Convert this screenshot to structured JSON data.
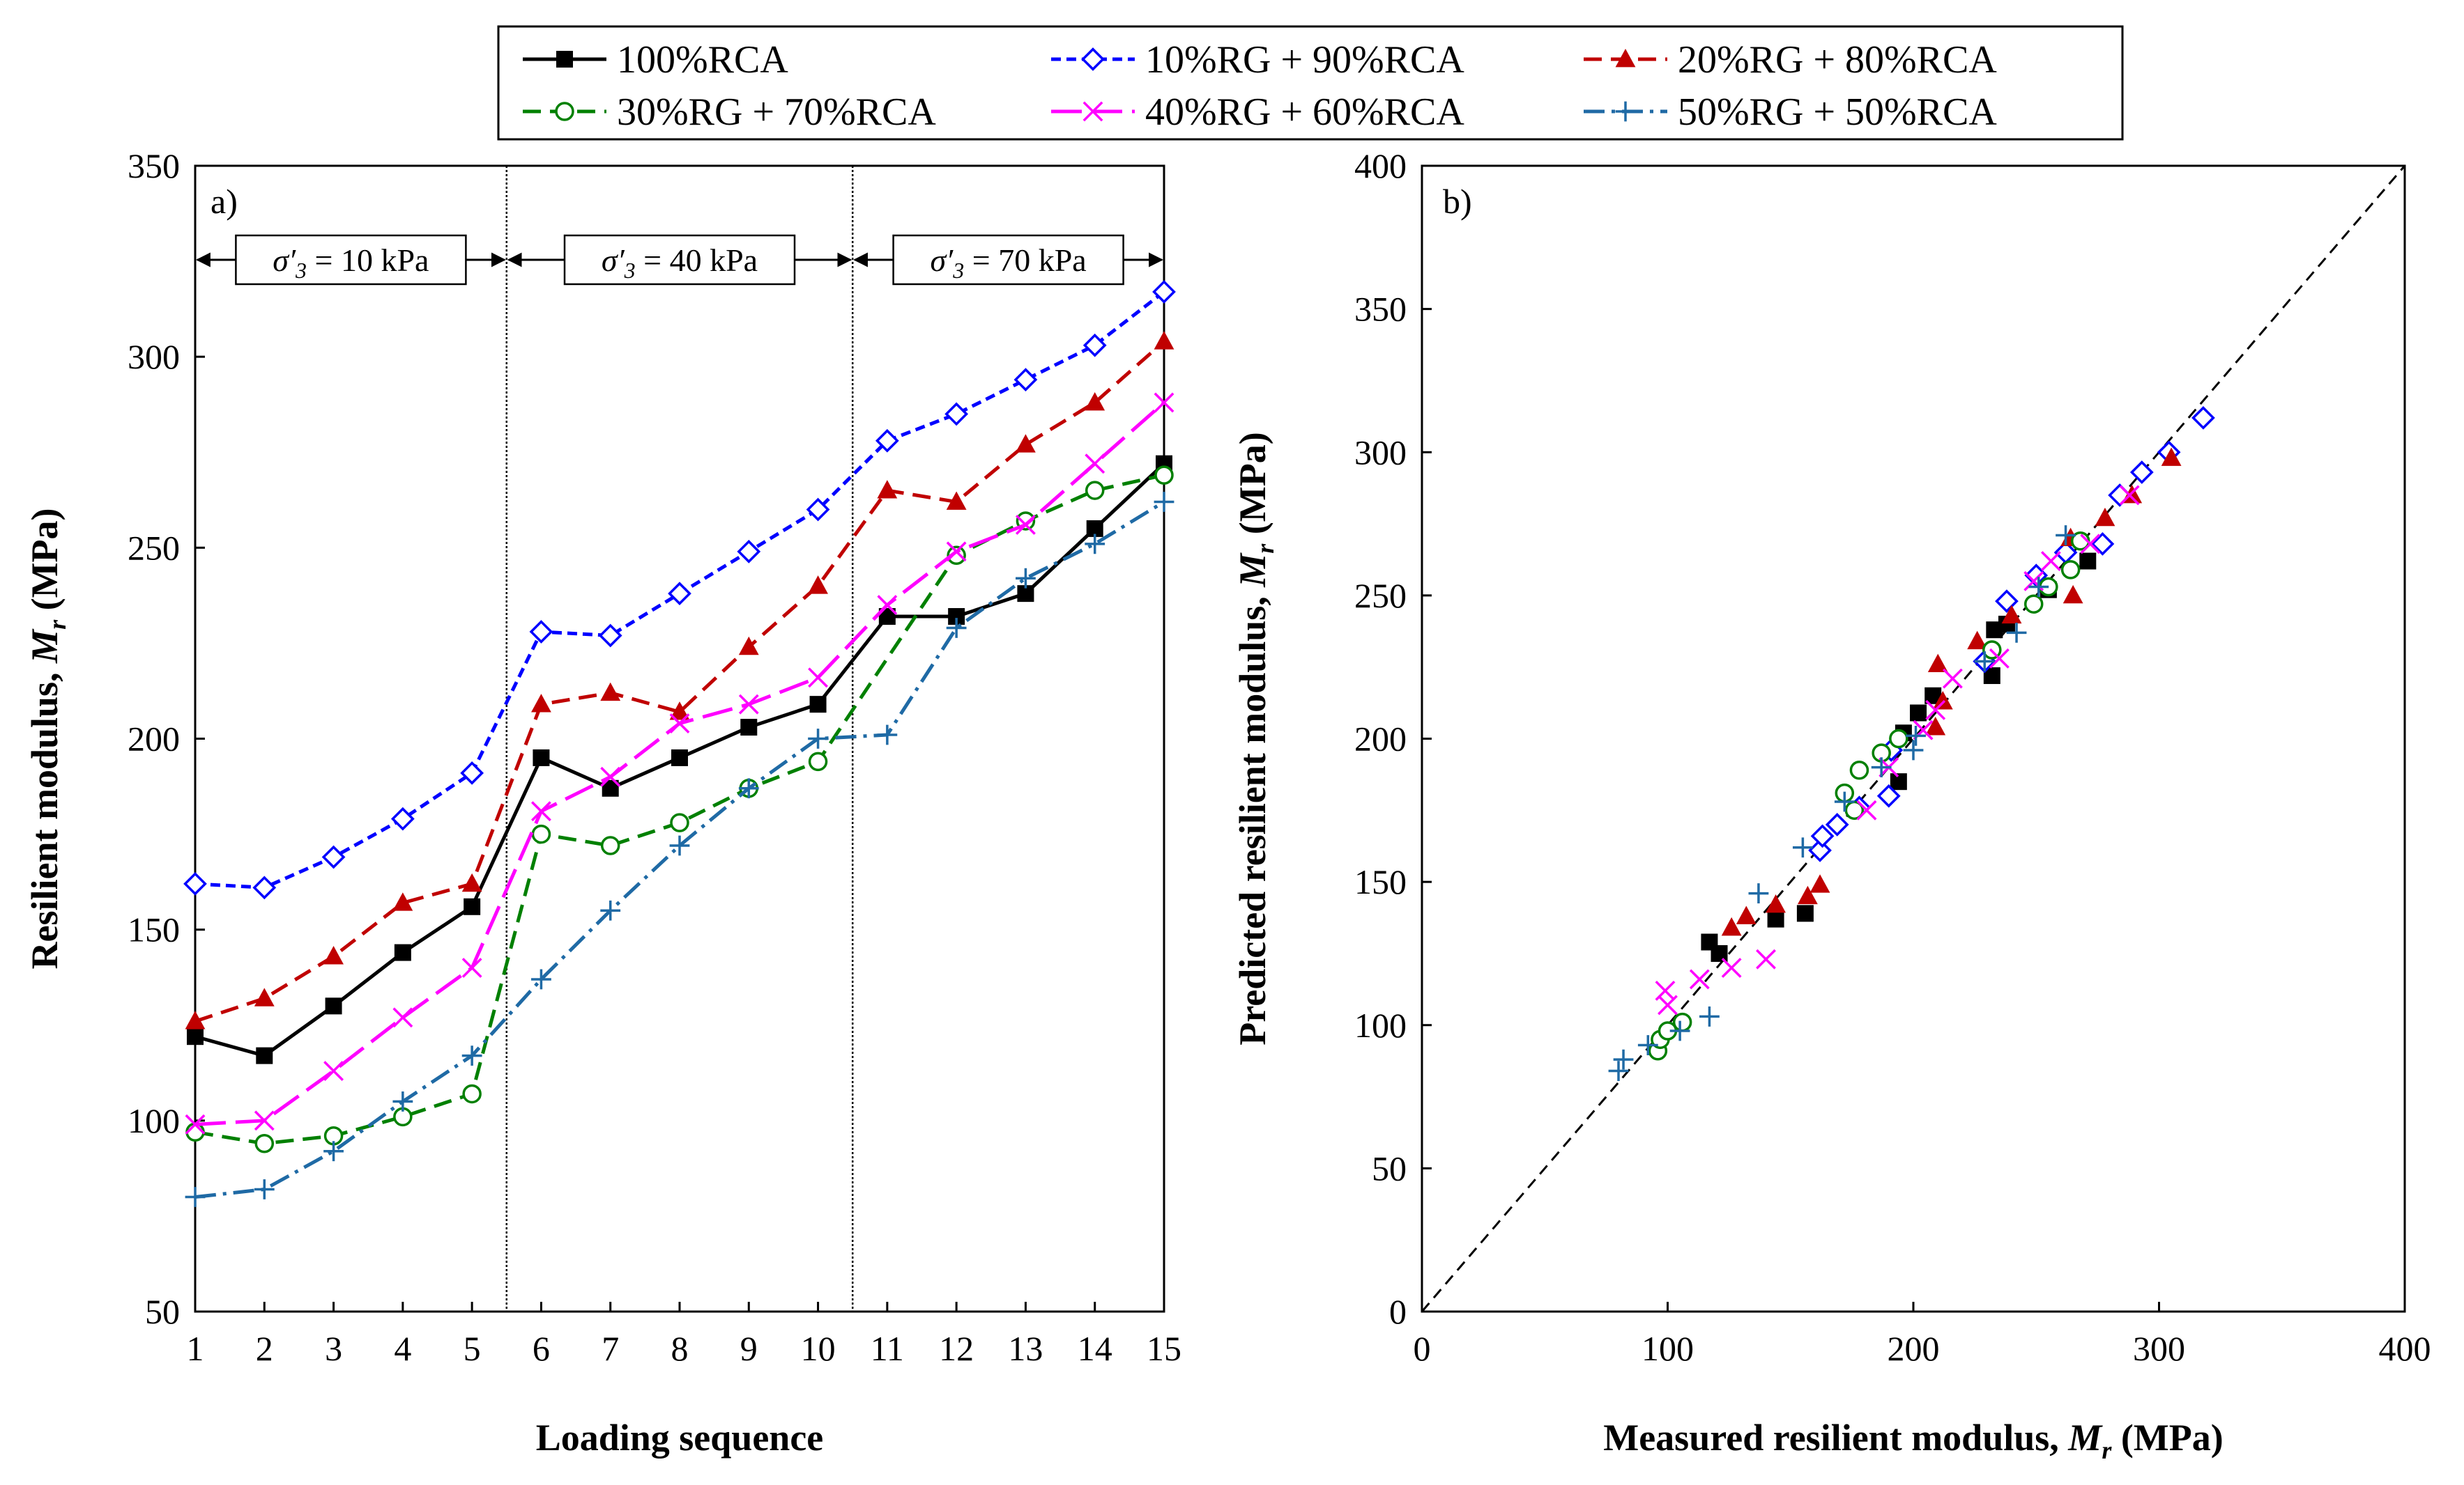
{
  "chart_data": [
    {
      "panel": "a)",
      "type": "line",
      "xlabel": "Loading sequence",
      "ylabel": "Resilient  modulus,",
      "ylabel_symbol": "M",
      "ylabel_sub": "r",
      "ylabel_unit": " (MPa)",
      "xlim": [
        1,
        15
      ],
      "ylim": [
        50,
        350
      ],
      "x": [
        1,
        2,
        3,
        4,
        5,
        6,
        7,
        8,
        9,
        10,
        11,
        12,
        13,
        14,
        15
      ],
      "xticks": [
        "1",
        "2",
        "3",
        "4",
        "5",
        "6",
        "7",
        "8",
        "9",
        "10",
        "11",
        "12",
        "13",
        "14",
        "15"
      ],
      "yticks": [
        "50",
        "100",
        "150",
        "200",
        "250",
        "300",
        "350"
      ],
      "stress_groups": [
        {
          "label": "σ′3 = 10 kPa",
          "from": 0.5,
          "to": 5.5
        },
        {
          "label": "σ′3 = 40 kPa",
          "from": 5.5,
          "to": 10.5
        },
        {
          "label": "σ′3 = 70 kPa",
          "from": 10.5,
          "to": 15
        }
      ],
      "stress_label_prefix": "σ′",
      "stress_label_sub": "3",
      "stress_values": [
        "= 10 kPa",
        "= 40 kPa",
        "= 70 kPa"
      ],
      "series": [
        {
          "name": "100%RCA",
          "values": [
            122,
            117,
            130,
            144,
            156,
            195,
            187,
            195,
            203,
            209,
            232,
            232,
            238,
            255,
            272
          ]
        },
        {
          "name": "10%RG + 90%RCA",
          "values": [
            162,
            161,
            169,
            179,
            191,
            228,
            227,
            238,
            249,
            260,
            278,
            285,
            294,
            303,
            317
          ]
        },
        {
          "name": "20%RG + 80%RCA",
          "values": [
            126,
            132,
            143,
            157,
            162,
            209,
            212,
            207,
            224,
            240,
            265,
            262,
            277,
            288,
            304
          ]
        },
        {
          "name": "30%RG + 70%RCA",
          "values": [
            97,
            94,
            96,
            101,
            107,
            175,
            172,
            178,
            187,
            194,
            null,
            248,
            257,
            265,
            269
          ]
        },
        {
          "name": "40%RG + 60%RCA",
          "values": [
            99,
            100,
            113,
            127,
            140,
            181,
            190,
            204,
            209,
            216,
            235,
            249,
            256,
            272,
            288
          ]
        },
        {
          "name": "50%RG + 50%RCA",
          "values": [
            80,
            82,
            92,
            105,
            117,
            137,
            155,
            172,
            187,
            200,
            201,
            229,
            242,
            251,
            262
          ]
        }
      ]
    },
    {
      "panel": "b)",
      "type": "scatter",
      "xlabel": "Measured resilient modulus,",
      "xlabel_symbol": "M",
      "xlabel_sub": "r",
      "xlabel_unit": " (MPa)",
      "ylabel": "Predicted resilient modulus,",
      "ylabel_symbol": "M",
      "ylabel_sub": "r",
      "ylabel_unit": " (MPa)",
      "xlim": [
        0,
        400
      ],
      "ylim": [
        0,
        400
      ],
      "xticks": [
        "0",
        "100",
        "200",
        "300",
        "400"
      ],
      "yticks": [
        "0",
        "50",
        "100",
        "150",
        "200",
        "250",
        "300",
        "350",
        "400"
      ],
      "reference_line": "y = x",
      "series": [
        {
          "name": "100%RCA",
          "points": [
            [
              117,
              129
            ],
            [
              121,
              125
            ],
            [
              144,
              137
            ],
            [
              156,
              139
            ],
            [
              194,
              185
            ],
            [
              196,
              202
            ],
            [
              202,
              209
            ],
            [
              208,
              215
            ],
            [
              232,
              222
            ],
            [
              233,
              238
            ],
            [
              238,
              240
            ],
            [
              255,
              252
            ],
            [
              271,
              262
            ]
          ]
        },
        {
          "name": "10%RG + 90%RCA",
          "points": [
            [
              162,
              161
            ],
            [
              163,
              166
            ],
            [
              169,
              170
            ],
            [
              178,
              176
            ],
            [
              190,
              180
            ],
            [
              191,
              196
            ],
            [
              229,
              227
            ],
            [
              238,
              248
            ],
            [
              250,
              257
            ],
            [
              262,
              265
            ],
            [
              277,
              268
            ],
            [
              284,
              285
            ],
            [
              293,
              293
            ],
            [
              304,
              300
            ],
            [
              318,
              312
            ]
          ]
        },
        {
          "name": "20%RG + 80%RCA",
          "points": [
            [
              126,
              134
            ],
            [
              132,
              138
            ],
            [
              144,
              142
            ],
            [
              157,
              145
            ],
            [
              162,
              149
            ],
            [
              209,
              204
            ],
            [
              210,
              226
            ],
            [
              212,
              213
            ],
            [
              226,
              234
            ],
            [
              240,
              243
            ],
            [
              265,
              250
            ],
            [
              264,
              270
            ],
            [
              278,
              277
            ],
            [
              289,
              285
            ],
            [
              305,
              298
            ]
          ]
        },
        {
          "name": "30%RG + 70%RCA",
          "points": [
            [
              96,
              91
            ],
            [
              97,
              95
            ],
            [
              100,
              98
            ],
            [
              106,
              101
            ],
            [
              172,
              181
            ],
            [
              176,
              175
            ],
            [
              178,
              189
            ],
            [
              187,
              195
            ],
            [
              194,
              200
            ],
            [
              232,
              231
            ],
            [
              249,
              247
            ],
            [
              255,
              253
            ],
            [
              264,
              259
            ],
            [
              268,
              269
            ]
          ]
        },
        {
          "name": "40%RG + 60%RCA",
          "points": [
            [
              99,
              112
            ],
            [
              100,
              107
            ],
            [
              113,
              116
            ],
            [
              126,
              120
            ],
            [
              140,
              123
            ],
            [
              181,
              175
            ],
            [
              190,
              190
            ],
            [
              204,
              203
            ],
            [
              209,
              210
            ],
            [
              216,
              221
            ],
            [
              235,
              228
            ],
            [
              249,
              255
            ],
            [
              256,
              262
            ],
            [
              272,
              268
            ],
            [
              288,
              285
            ]
          ]
        },
        {
          "name": "50%RG + 50%RCA",
          "points": [
            [
              80,
              84
            ],
            [
              82,
              88
            ],
            [
              92,
              93
            ],
            [
              105,
              98
            ],
            [
              117,
              103
            ],
            [
              137,
              146
            ],
            [
              155,
              162
            ],
            [
              172,
              178
            ],
            [
              187,
              190
            ],
            [
              200,
              196
            ],
            [
              201,
              201
            ],
            [
              229,
              227
            ],
            [
              242,
              237
            ],
            [
              251,
              253
            ],
            [
              262,
              271
            ]
          ]
        }
      ]
    }
  ],
  "legend": {
    "position": "top-center",
    "entries": [
      {
        "label": "100%RCA",
        "color": "#000000",
        "marker": "square-filled",
        "dash": "solid"
      },
      {
        "label": "10%RG + 90%RCA",
        "color": "#0000ff",
        "marker": "diamond-open",
        "dash": "short-dash"
      },
      {
        "label": "20%RG + 80%RCA",
        "color": "#c00000",
        "marker": "triangle-filled",
        "dash": "dash"
      },
      {
        "label": "30%RG + 70%RCA",
        "color": "#008000",
        "marker": "circle-open",
        "dash": "dash"
      },
      {
        "label": "40%RG + 60%RCA",
        "color": "#ff00ff",
        "marker": "x",
        "dash": "long-dash"
      },
      {
        "label": "50%RG + 50%RCA",
        "color": "#1f6aa5",
        "marker": "plus",
        "dash": "dash-dot"
      }
    ]
  }
}
